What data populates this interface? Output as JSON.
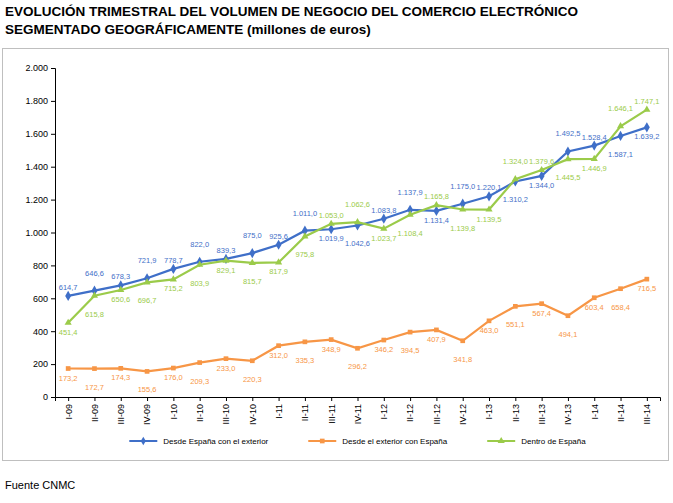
{
  "chart_data": {
    "type": "line",
    "title": "EVOLUCIÓN TRIMESTRAL DEL VOLUMEN DE NEGOCIO DEL COMERCIO ELECTRÓNICO",
    "subtitle": "SEGMENTADO GEOGRÁFICAMENTE (millones de euros)",
    "source": "Fuente CNMC",
    "categories": [
      "I-09",
      "II-09",
      "III-09",
      "IV-09",
      "I-10",
      "II-10",
      "III-10",
      "IV-10",
      "I-11",
      "II-11",
      "III-11",
      "IV-11",
      "I-12",
      "II-12",
      "III-12",
      "IV-12",
      "I-13",
      "II-13",
      "III-13",
      "IV-13",
      "I-14",
      "II-14",
      "III-14"
    ],
    "series": [
      {
        "name": "Desde España con el exterior",
        "color": "#3f6fc8",
        "marker": "diamond",
        "values": [
          614.7,
          646.6,
          678.3,
          721.9,
          778.7,
          822.0,
          839.3,
          875.0,
          925.6,
          1011.0,
          1019.9,
          1042.6,
          1083.8,
          1137.9,
          1131.4,
          1175.0,
          1220.1,
          1310.2,
          1344.0,
          1492.5,
          1528.4,
          1587.1,
          1639.2
        ],
        "value_labels": [
          "614,7",
          "646,6",
          "678,3",
          "721,9",
          "778,7",
          "822,0",
          "839,3",
          "875,0",
          "925,6",
          "1.011,0",
          "1.019,9",
          "1.042,6",
          "1.083,8",
          "1.137,9",
          "1.131,4",
          "1.175,0",
          "1.220,1",
          "1.310,2",
          "1.344,0",
          "1.492,5",
          "1.528,4",
          "1.587,1",
          "1.639,2"
        ]
      },
      {
        "name": "Desde el exterior con España",
        "color": "#f79646",
        "marker": "square",
        "values": [
          173.2,
          172.7,
          174.3,
          155.6,
          176.0,
          209.3,
          233.0,
          220.3,
          312.0,
          335.3,
          348.9,
          296.2,
          346.2,
          394.5,
          407.9,
          341.8,
          463.0,
          551.1,
          567.4,
          494.1,
          603.4,
          658.4,
          716.5
        ],
        "value_labels": [
          "173,2",
          "172,7",
          "174,3",
          "155,6",
          "176,0",
          "209,3",
          "233,0",
          "220,3",
          "312,0",
          "335,3",
          "348,9",
          "296,2",
          "346,2",
          "394,5",
          "407,9",
          "341,8",
          "463,0",
          "551,1",
          "567,4",
          "494,1",
          "603,4",
          "658,4",
          "716,5"
        ]
      },
      {
        "name": "Dentro de España",
        "color": "#9bcb4a",
        "marker": "triangle",
        "values": [
          451.4,
          615.8,
          650.6,
          696.7,
          715.2,
          803.9,
          829.1,
          815.7,
          817.9,
          975.8,
          1053.0,
          1062.6,
          1023.7,
          1108.4,
          1165.8,
          1139.8,
          1139.5,
          1324.0,
          1379.6,
          1445.5,
          1446.9,
          1646.1,
          1747.1
        ],
        "value_labels": [
          "451,4",
          "615,8",
          "650,6",
          "696,7",
          "715,2",
          "803,9",
          "829,1",
          "815,7",
          "817,9",
          "975,8",
          "1.053,0",
          "1.062,6",
          "1.023,7",
          "1.108,4",
          "1.165,8",
          "1.139,8",
          "1.139,5",
          "1.324,0",
          "1.379,6",
          "1.445,5",
          "1.446,9",
          "1.646,1",
          "1.747,1"
        ]
      }
    ],
    "ylim": [
      0,
      2000
    ],
    "yticks": [
      0,
      200,
      400,
      600,
      800,
      {
        "value": 1000,
        "label": "1.000"
      },
      {
        "value": 1200,
        "label": "1.200"
      },
      {
        "value": 1400,
        "label": "1.400"
      },
      {
        "value": 1600,
        "label": "1.600"
      },
      {
        "value": 1800,
        "label": "1.800"
      },
      {
        "value": 2000,
        "label": "2.000"
      }
    ],
    "grid": false,
    "legend": "bottom",
    "data_labels": true
  }
}
